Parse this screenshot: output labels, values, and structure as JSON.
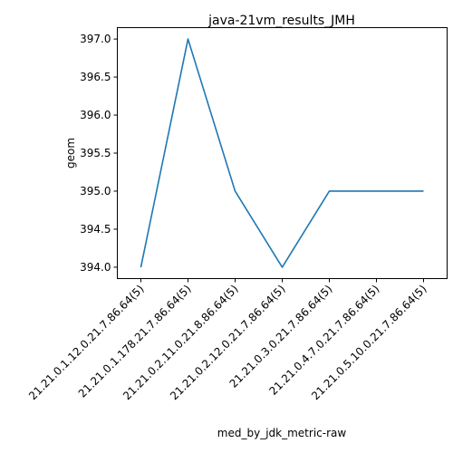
{
  "chart_data": {
    "type": "line",
    "title": "java-21vm_results_JMH",
    "xlabel": "med_by_jdk_metric-raw",
    "ylabel": "geom",
    "categories": [
      "21.21.0.1.12.0.21.7.86.64(5)",
      "21.21.0.1.178.21.7.86.64(5)",
      "21.21.0.2.11.0.21.8.86.64(5)",
      "21.21.0.2.12.0.21.7.86.64(5)",
      "21.21.0.3.0.21.7.86.64(5)",
      "21.21.0.4.7.0.21.7.86.64(5)",
      "21.21.0.5.10.0.21.7.86.64(5)"
    ],
    "series": [
      {
        "values": [
          394.0,
          397.0,
          395.0,
          394.0,
          395.0,
          395.0,
          395.0
        ],
        "color": "#1f77b4"
      }
    ],
    "yticks": [
      "394.0",
      "394.5",
      "395.0",
      "395.5",
      "396.0",
      "396.5",
      "397.0"
    ],
    "ylim": [
      393.85,
      397.15
    ],
    "grid": false,
    "legend": "none"
  }
}
